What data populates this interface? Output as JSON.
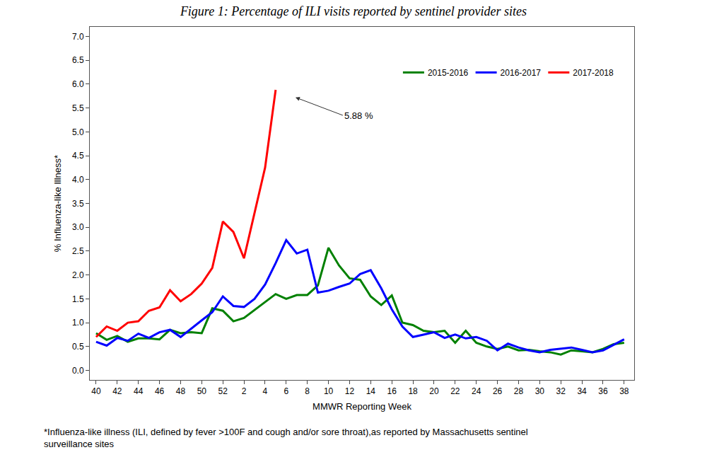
{
  "chart_data": {
    "type": "line",
    "title": "Figure 1: Percentage of ILI visits reported by sentinel provider sites",
    "x_label": "MMWR Reporting Week",
    "y_label": "% Influenza-like Illness*",
    "footnote": [
      "*Influenza-like illness (ILI, defined by fever >100F and cough and/or sore throat),as reported by Massachusetts sentinel",
      "surveillance sites"
    ],
    "categories": [
      "40",
      null,
      "42",
      null,
      "44",
      null,
      "46",
      null,
      "48",
      null,
      "50",
      null,
      "52",
      null,
      "2",
      null,
      "4",
      null,
      "6",
      null,
      "8",
      null,
      "10",
      null,
      "12",
      null,
      "14",
      null,
      "16",
      null,
      "18",
      null,
      "20",
      null,
      "22",
      null,
      "24",
      null,
      "26",
      null,
      "28",
      null,
      "30",
      null,
      "32",
      null,
      "34",
      null,
      "36",
      null,
      "38"
    ],
    "series": [
      {
        "name": "2015-2016",
        "color": "#008000",
        "values": [
          0.78,
          0.64,
          0.72,
          0.6,
          0.67,
          0.67,
          0.65,
          0.85,
          0.78,
          0.8,
          0.78,
          1.3,
          1.25,
          1.03,
          1.1,
          1.27,
          1.43,
          1.6,
          1.5,
          1.58,
          1.58,
          1.78,
          2.57,
          2.2,
          1.93,
          1.9,
          1.55,
          1.37,
          1.57,
          1.0,
          0.95,
          0.83,
          0.8,
          0.83,
          0.58,
          0.83,
          0.58,
          0.5,
          0.45,
          0.5,
          0.42,
          0.43,
          0.4,
          0.38,
          0.33,
          0.42,
          0.4,
          0.38,
          0.45,
          0.55,
          0.58
        ]
      },
      {
        "name": "2016-2017",
        "color": "#0000ff",
        "values": [
          0.6,
          0.52,
          0.68,
          0.62,
          0.77,
          0.68,
          0.8,
          0.85,
          0.7,
          0.88,
          1.05,
          1.22,
          1.55,
          1.35,
          1.33,
          1.5,
          1.8,
          2.25,
          2.73,
          2.45,
          2.53,
          1.63,
          1.67,
          1.75,
          1.82,
          2.02,
          2.1,
          1.72,
          1.28,
          0.92,
          0.7,
          0.75,
          0.8,
          0.68,
          0.75,
          0.67,
          0.7,
          0.62,
          0.42,
          0.56,
          0.48,
          0.42,
          0.38,
          0.43,
          0.45,
          0.48,
          0.43,
          0.38,
          0.42,
          0.53,
          0.65
        ]
      },
      {
        "name": "2017-2018",
        "color": "#ff0000",
        "values": [
          0.7,
          0.92,
          0.83,
          1.0,
          1.03,
          1.25,
          1.32,
          1.68,
          1.45,
          1.6,
          1.82,
          2.15,
          3.12,
          2.9,
          2.35,
          3.3,
          4.25,
          5.88,
          null,
          null,
          null,
          null,
          null,
          null,
          null,
          null,
          null,
          null,
          null,
          null,
          null,
          null,
          null,
          null,
          null,
          null,
          null,
          null,
          null,
          null,
          null,
          null,
          null,
          null,
          null,
          null,
          null,
          null,
          null,
          null,
          null
        ]
      }
    ],
    "annotations": [
      {
        "text": "5.88 %",
        "series": "2017-2018",
        "value": 5.88
      }
    ],
    "ylim": [
      -0.2,
      7.2
    ],
    "yticks": [
      {
        "value": 0,
        "label": "0.0"
      },
      {
        "value": 0.5,
        "label": "0.5"
      },
      {
        "value": 1,
        "label": "1.0"
      },
      {
        "value": 1.5,
        "label": "1.5"
      },
      {
        "value": 2,
        "label": "2.0"
      },
      {
        "value": 2.5,
        "label": "2.5"
      },
      {
        "value": 3,
        "label": "3.0"
      },
      {
        "value": 3.5,
        "label": "3.5"
      },
      {
        "value": 4,
        "label": "4.0"
      },
      {
        "value": 4.5,
        "label": "4.5"
      },
      {
        "value": 5,
        "label": "5.0"
      },
      {
        "value": 5.5,
        "label": "5.5"
      },
      {
        "value": 6,
        "label": "6.0"
      },
      {
        "value": 6.5,
        "label": "6.5"
      },
      {
        "value": 7,
        "label": "7.0"
      }
    ],
    "grid": false,
    "legend": "top right"
  }
}
